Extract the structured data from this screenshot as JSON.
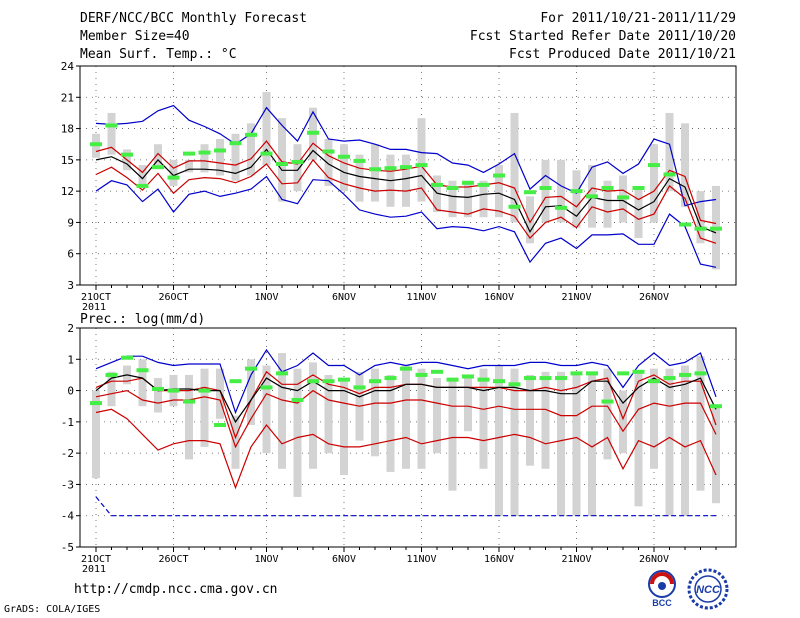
{
  "header": {
    "line1_left": "DERF/NCC/BCC Monthly Forecast",
    "line2_left": "Member Size=40",
    "line3_left": "Mean Surf. Temp.: °C",
    "line1_right": "For 2011/10/21-2011/11/29",
    "line2_right": "Fcst Started Refer Date 2011/10/20",
    "line3_right": "Fcst Produced Date 2011/10/21"
  },
  "footer": {
    "url": "http://cmdp.ncc.cma.gov.cn",
    "grads": "GrADS: COLA/IGES",
    "logo_left_text": "BCC",
    "logo_right_text": "NCC"
  },
  "colors": {
    "mean": "#000000",
    "spread": "#cc0000",
    "extreme": "#0000cc",
    "box": "#d3d3d3",
    "ensemble_marker": "#44ee44"
  },
  "chart_data": [
    {
      "type": "line",
      "title": "Mean Surf. Temp.: °C",
      "ylim": [
        3,
        24
      ],
      "yticks": [
        3,
        6,
        9,
        12,
        15,
        18,
        21,
        24
      ],
      "xticks": [
        {
          "day": 1,
          "label": "21OCT"
        },
        {
          "day": 6,
          "label": "26OCT"
        },
        {
          "day": 12,
          "label": "1NOV"
        },
        {
          "day": 17,
          "label": "6NOV"
        },
        {
          "day": 22,
          "label": "11NOV"
        },
        {
          "day": 27,
          "label": "16NOV"
        },
        {
          "day": 32,
          "label": "21NOV"
        },
        {
          "day": 37,
          "label": "26NOV"
        }
      ],
      "year_label": "2011",
      "days": 40,
      "series": [
        {
          "name": "max",
          "color": "#0000cc",
          "values": [
            18.5,
            18.4,
            18.5,
            18.7,
            19.7,
            20.2,
            18.8,
            18.2,
            17.5,
            16.5,
            17.5,
            20.0,
            18.3,
            16.8,
            19.6,
            17.0,
            16.8,
            16.9,
            16.5,
            16.0,
            16.0,
            15.7,
            15.6,
            14.7,
            14.5,
            13.8,
            14.6,
            15.6,
            12.2,
            13.5,
            12.5,
            11.8,
            14.3,
            14.8,
            13.7,
            14.6,
            17.0,
            16.5,
            10.6,
            11.0,
            11.2
          ]
        },
        {
          "name": "upper",
          "color": "#cc0000",
          "values": [
            15.8,
            16.2,
            15.0,
            13.8,
            15.6,
            14.2,
            14.9,
            14.9,
            14.7,
            14.5,
            15.1,
            16.8,
            14.8,
            14.6,
            16.6,
            15.4,
            14.7,
            14.2,
            14.0,
            13.9,
            14.1,
            14.4,
            12.6,
            12.4,
            12.4,
            12.6,
            12.8,
            12.3,
            9.0,
            11.4,
            11.5,
            10.5,
            12.3,
            12.0,
            12.1,
            11.2,
            12.0,
            14.0,
            13.4,
            9.2,
            8.9
          ]
        },
        {
          "name": "mean",
          "color": "#000000",
          "values": [
            15.0,
            15.3,
            14.6,
            13.2,
            15.0,
            13.5,
            14.1,
            14.1,
            14.0,
            13.7,
            14.3,
            16.0,
            14.0,
            14.0,
            15.9,
            14.6,
            13.8,
            13.4,
            13.2,
            13.0,
            13.2,
            13.5,
            11.8,
            11.5,
            11.4,
            11.7,
            11.8,
            11.2,
            8.1,
            10.5,
            10.6,
            9.6,
            11.4,
            11.1,
            11.1,
            10.2,
            11.0,
            13.2,
            12.4,
            8.6,
            8.0
          ]
        },
        {
          "name": "lower",
          "color": "#cc0000",
          "values": [
            13.6,
            14.3,
            13.3,
            12.1,
            13.7,
            11.8,
            13.1,
            13.3,
            13.2,
            12.8,
            13.4,
            14.6,
            12.7,
            12.8,
            15.0,
            13.3,
            12.7,
            12.3,
            12.0,
            12.1,
            12.0,
            12.3,
            10.2,
            10.0,
            9.8,
            10.3,
            10.1,
            9.6,
            7.5,
            9.0,
            9.5,
            8.5,
            10.5,
            10.0,
            10.3,
            9.3,
            9.8,
            12.5,
            11.3,
            7.5,
            7.0
          ]
        },
        {
          "name": "min",
          "color": "#0000cc",
          "values": [
            12.0,
            13.0,
            12.6,
            11.0,
            12.2,
            10.0,
            11.7,
            12.0,
            11.5,
            11.8,
            12.2,
            13.4,
            11.2,
            10.8,
            13.1,
            13.0,
            11.7,
            10.2,
            9.8,
            9.5,
            9.6,
            10.0,
            8.4,
            8.6,
            8.5,
            8.2,
            8.6,
            8.1,
            5.2,
            7.0,
            7.5,
            6.5,
            7.8,
            7.8,
            7.9,
            6.9,
            6.9,
            9.8,
            8.6,
            5.0,
            4.7
          ]
        }
      ],
      "boxes": {
        "low": [
          15.2,
          15.5,
          14.0,
          12.5,
          14.5,
          12.5,
          13.8,
          13.8,
          13.5,
          13.0,
          13.5,
          14.5,
          11.0,
          12.0,
          15.0,
          12.5,
          12.0,
          11.0,
          11.0,
          10.5,
          10.5,
          11.0,
          10.0,
          9.5,
          9.5,
          9.5,
          9.5,
          9.0,
          7.0,
          9.0,
          9.0,
          8.5,
          8.5,
          8.5,
          9.0,
          7.5,
          9.0,
          12.0,
          10.5,
          7.0,
          4.5
        ],
        "high": [
          17.5,
          19.5,
          16.0,
          14.5,
          16.5,
          15.0,
          15.0,
          16.5,
          17.0,
          17.5,
          18.5,
          21.5,
          19.0,
          16.5,
          20.0,
          17.0,
          16.5,
          15.5,
          16.5,
          15.5,
          15.5,
          19.0,
          13.5,
          13.0,
          13.0,
          13.0,
          14.5,
          19.5,
          11.5,
          15.0,
          15.0,
          14.0,
          14.5,
          13.0,
          13.5,
          12.5,
          16.5,
          19.5,
          18.5,
          12.0,
          12.5
        ]
      },
      "ensemble_markers": [
        16.5,
        18.3,
        15.5,
        12.5,
        14.3,
        13.3,
        15.6,
        15.7,
        15.9,
        16.6,
        17.4,
        15.6,
        14.6,
        14.8,
        17.6,
        15.8,
        15.3,
        14.9,
        14.1,
        14.2,
        14.3,
        14.5,
        12.6,
        12.3,
        12.8,
        12.6,
        13.5,
        10.5,
        11.9,
        12.3,
        10.4,
        12.0,
        11.5,
        12.3,
        11.4,
        12.3,
        14.5,
        13.6,
        8.8,
        8.4,
        8.4
      ]
    },
    {
      "type": "line",
      "title": "Prec.: log(mm/d)",
      "ylim": [
        -5,
        2
      ],
      "yticks": [
        -5,
        -4,
        -3,
        -2,
        -1,
        0,
        1,
        2
      ],
      "xticks": [
        {
          "day": 1,
          "label": "21OCT"
        },
        {
          "day": 6,
          "label": "26OCT"
        },
        {
          "day": 12,
          "label": "1NOV"
        },
        {
          "day": 17,
          "label": "6NOV"
        },
        {
          "day": 22,
          "label": "11NOV"
        },
        {
          "day": 27,
          "label": "16NOV"
        },
        {
          "day": 32,
          "label": "21NOV"
        },
        {
          "day": 37,
          "label": "26NOV"
        }
      ],
      "year_label": "2011",
      "days": 40,
      "series": [
        {
          "name": "max",
          "color": "#0000cc",
          "values": [
            0.7,
            0.9,
            1.1,
            1.1,
            0.9,
            0.8,
            0.85,
            0.85,
            0.85,
            -0.7,
            0.5,
            1.3,
            0.6,
            0.8,
            1.2,
            0.8,
            0.8,
            0.5,
            0.8,
            0.9,
            0.8,
            0.9,
            0.9,
            0.8,
            0.7,
            0.8,
            0.8,
            0.8,
            0.9,
            0.9,
            0.8,
            0.8,
            0.9,
            0.8,
            0.1,
            0.8,
            1.2,
            0.8,
            0.9,
            1.2,
            -0.2
          ]
        },
        {
          "name": "upper",
          "color": "#cc0000",
          "values": [
            0.1,
            0.3,
            0.3,
            0.4,
            0.0,
            0.0,
            0.0,
            0.1,
            0.0,
            -1.5,
            -0.3,
            0.6,
            0.2,
            0.2,
            0.5,
            0.2,
            0.1,
            -0.1,
            0.1,
            0.1,
            0.2,
            0.2,
            0.1,
            0.1,
            0.1,
            0.1,
            0.1,
            0.0,
            0.0,
            0.1,
            0.0,
            0.1,
            0.3,
            0.4,
            -0.9,
            0.3,
            0.5,
            0.2,
            0.3,
            0.3,
            -1.1
          ]
        },
        {
          "name": "mean",
          "color": "#000000",
          "values": [
            0.0,
            0.4,
            0.5,
            0.4,
            0.0,
            0.05,
            0.05,
            0.0,
            0.0,
            -1.0,
            -0.3,
            0.4,
            0.1,
            0.0,
            0.3,
            0.0,
            0.0,
            -0.2,
            0.0,
            0.0,
            0.2,
            0.2,
            0.1,
            0.1,
            0.1,
            0.0,
            0.1,
            0.1,
            0.0,
            0.0,
            -0.1,
            -0.1,
            0.3,
            0.3,
            -0.4,
            0.1,
            0.4,
            0.1,
            0.2,
            0.4,
            -0.6
          ]
        },
        {
          "name": "lower",
          "color": "#cc0000",
          "values": [
            -0.2,
            -0.1,
            0.0,
            -0.3,
            -0.4,
            -0.3,
            -0.3,
            -0.2,
            -0.3,
            -1.8,
            -0.9,
            -0.1,
            -0.3,
            -0.4,
            0.0,
            -0.3,
            -0.4,
            -0.5,
            -0.4,
            -0.4,
            -0.3,
            -0.3,
            -0.4,
            -0.5,
            -0.5,
            -0.6,
            -0.5,
            -0.6,
            -0.6,
            -0.6,
            -0.8,
            -0.8,
            -0.5,
            -0.5,
            -1.3,
            -0.6,
            -0.4,
            -0.5,
            -0.4,
            -0.4,
            -1.4
          ]
        },
        {
          "name": "p10",
          "color": "#cc0000",
          "values": [
            -0.7,
            -0.6,
            -0.9,
            -1.4,
            -1.9,
            -1.7,
            -1.6,
            -1.6,
            -1.7,
            -3.1,
            -1.8,
            -1.1,
            -1.7,
            -1.5,
            -1.4,
            -1.7,
            -1.8,
            -1.8,
            -1.7,
            -1.6,
            -1.5,
            -1.7,
            -1.6,
            -1.5,
            -1.5,
            -1.6,
            -1.5,
            -1.4,
            -1.5,
            -1.7,
            -1.6,
            -1.5,
            -1.8,
            -1.5,
            -2.5,
            -1.6,
            -1.8,
            -1.5,
            -1.8,
            -1.6,
            -2.7
          ]
        },
        {
          "name": "min",
          "color": "#0000cc",
          "values": [
            -3.4,
            -4.0,
            -4.0,
            -4.0,
            -4.0,
            -4.0,
            -4.0,
            -4.0,
            -4.0,
            -4.0,
            -4.0,
            -4.0,
            -4.0,
            -4.0,
            -4.0,
            -4.0,
            -4.0,
            -4.0,
            -4.0,
            -4.0,
            -4.0,
            -4.0,
            -4.0,
            -4.0,
            -4.0,
            -4.0,
            -4.0,
            -4.0,
            -4.0,
            -4.0,
            -4.0,
            -4.0,
            -4.0,
            -4.0,
            -4.0,
            -4.0,
            -4.0,
            -4.0,
            -4.0,
            -4.0,
            -4.0
          ]
        }
      ],
      "boxes": {
        "low": [
          -2.8,
          -0.5,
          0.2,
          -0.5,
          -0.7,
          -0.5,
          -2.2,
          -1.8,
          -0.9,
          -2.5,
          -1.1,
          -2.0,
          -2.5,
          -3.4,
          -2.5,
          -2.0,
          -2.7,
          -1.6,
          -2.1,
          -2.6,
          -2.5,
          -2.5,
          -2.0,
          -3.2,
          -1.3,
          -2.5,
          -4.0,
          -4.0,
          -2.4,
          -2.5,
          -4.0,
          -4.0,
          -4.0,
          -2.2,
          -2.0,
          -3.7,
          -2.5,
          -4.0,
          -4.0,
          -3.2,
          -3.6
        ],
        "high": [
          0.0,
          0.6,
          0.8,
          1.0,
          0.4,
          0.5,
          0.5,
          0.7,
          0.7,
          -0.8,
          1.0,
          0.8,
          1.2,
          0.7,
          0.9,
          0.5,
          0.4,
          0.6,
          0.7,
          0.5,
          0.8,
          0.7,
          0.4,
          0.4,
          0.5,
          0.7,
          0.8,
          0.7,
          0.5,
          0.6,
          0.6,
          0.5,
          0.6,
          0.7,
          0.0,
          0.6,
          0.7,
          0.7,
          0.8,
          1.1,
          -0.5
        ]
      },
      "ensemble_markers": [
        -0.4,
        0.5,
        1.05,
        0.65,
        0.05,
        0.0,
        -0.35,
        0.0,
        -1.1,
        0.3,
        0.7,
        0.1,
        0.55,
        -0.3,
        0.3,
        0.3,
        0.35,
        0.1,
        0.3,
        0.4,
        0.7,
        0.5,
        0.6,
        0.35,
        0.45,
        0.35,
        0.3,
        0.2,
        0.4,
        0.4,
        0.4,
        0.55,
        0.55,
        -0.35,
        0.55,
        0.6,
        0.3,
        0.4,
        0.5,
        0.55,
        -0.5
      ]
    }
  ]
}
